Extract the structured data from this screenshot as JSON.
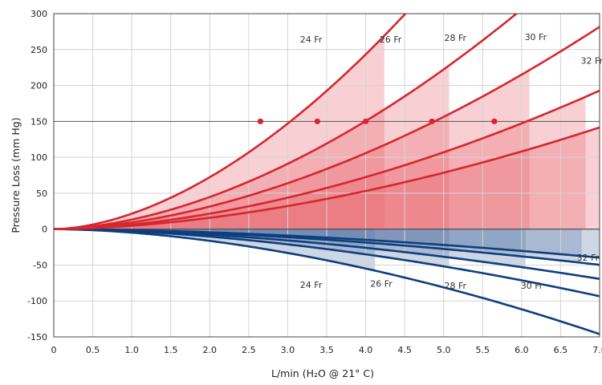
{
  "chart_data": {
    "type": "line",
    "xlabel": "L/min (H₂O @ 21° C)",
    "ylabel": "Pressure Loss (mm Hg)",
    "xlim": [
      0,
      7.0
    ],
    "ylim": [
      -150,
      300
    ],
    "x_ticks": [
      "0",
      "0.5",
      "1.0",
      "1.5",
      "2.0",
      "2.5",
      "3.0",
      "3.5",
      "4.0",
      "4.5",
      "5.0",
      "5.5",
      "6.0",
      "6.5",
      "7.0"
    ],
    "y_ticks": [
      "300",
      "250",
      "200",
      "150",
      "100",
      "50",
      "0",
      "-50",
      "-100",
      "-150"
    ],
    "grid": true,
    "reference_line_y": 150,
    "positive_series": {
      "color": "#d6262f",
      "fill_color": "#e8646c",
      "series": [
        {
          "name": "24 Fr",
          "k": 21.5,
          "marker": [
            2.65,
            150
          ],
          "label_x": 3.3,
          "label_y": 260
        },
        {
          "name": "26 Fr",
          "k": 13.3,
          "marker": [
            3.38,
            150
          ],
          "label_x": 4.32,
          "label_y": 260
        },
        {
          "name": "28 Fr",
          "k": 9.35,
          "marker": [
            4.0,
            150
          ],
          "label_x": 5.15,
          "label_y": 262
        },
        {
          "name": "30 Fr",
          "k": 6.4,
          "marker": [
            4.85,
            150
          ],
          "label_x": 6.18,
          "label_y": 263
        },
        {
          "name": "32 Fr",
          "k": 4.7,
          "marker": [
            5.65,
            150
          ],
          "label_x": 6.9,
          "label_y": 230
        }
      ]
    },
    "negative_series": {
      "color": "#0d3f7e",
      "fill_color": "#5b78a6",
      "series": [
        {
          "name": "24 Fr",
          "k": 4.85,
          "label_x": 3.3,
          "label_y": -82
        },
        {
          "name": "26 Fr",
          "k": 3.1,
          "label_x": 4.2,
          "label_y": -80
        },
        {
          "name": "28 Fr",
          "k": 2.3,
          "label_x": 5.15,
          "label_y": -83
        },
        {
          "name": "30 Fr",
          "k": 1.65,
          "label_x": 6.13,
          "label_y": -83
        },
        {
          "name": "32 Fr",
          "k": 1.32,
          "label_x": 6.85,
          "label_y": -44
        }
      ]
    }
  }
}
